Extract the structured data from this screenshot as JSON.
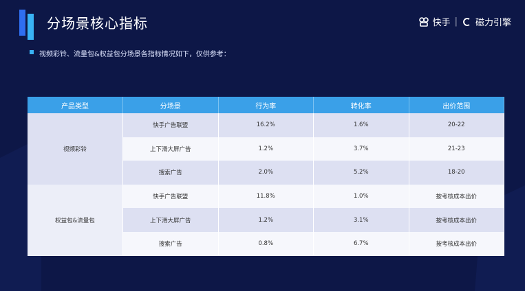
{
  "header": {
    "title": "分场景核心指标",
    "brand": "快手",
    "partner": "磁力引擎",
    "subtitle": "视频彩铃、流量包&权益包分场景各指标情况如下，仅供参考："
  },
  "table": {
    "columns": [
      "产品类型",
      "分场景",
      "行为率",
      "转化率",
      "出价范围"
    ],
    "groups": [
      {
        "label": "视频彩铃",
        "rows": [
          [
            "快手广告联盟",
            "16.2%",
            "1.6%",
            "20-22"
          ],
          [
            "上下滑大屏广告",
            "1.2%",
            "3.7%",
            "21-23"
          ],
          [
            "搜索广告",
            "2.0%",
            "5.2%",
            "18-20"
          ]
        ]
      },
      {
        "label": "权益包&流量包",
        "rows": [
          [
            "快手广告联盟",
            "11.8%",
            "1.0%",
            "按考核成本出价"
          ],
          [
            "上下滑大屏广告",
            "1.2%",
            "3.1%",
            "按考核成本出价"
          ],
          [
            "搜索广告",
            "0.8%",
            "6.7%",
            "按考核成本出价"
          ]
        ]
      }
    ]
  }
}
